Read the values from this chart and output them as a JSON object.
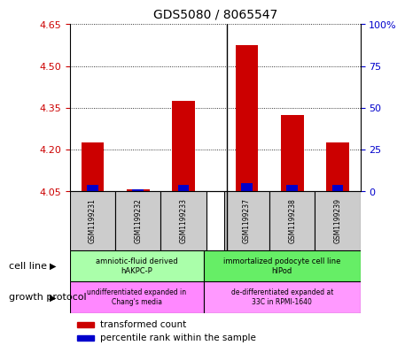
{
  "title": "GDS5080 / 8065547",
  "samples": [
    "GSM1199231",
    "GSM1199232",
    "GSM1199233",
    "GSM1199237",
    "GSM1199238",
    "GSM1199239"
  ],
  "transformed_counts": [
    4.225,
    4.057,
    4.375,
    4.575,
    4.325,
    4.225
  ],
  "percentile_ranks": [
    4,
    1,
    4,
    5,
    4,
    4
  ],
  "y_min": 4.05,
  "y_max": 4.65,
  "y_ticks": [
    4.05,
    4.2,
    4.35,
    4.5,
    4.65
  ],
  "y_ticks_labels": [
    "4.05",
    "4.20",
    "4.35",
    "4.50",
    "4.65"
  ],
  "right_y_ticks": [
    0,
    25,
    50,
    75,
    100
  ],
  "right_y_labels": [
    "0",
    "25",
    "50",
    "75",
    "100%"
  ],
  "bar_color_red": "#cc0000",
  "bar_color_blue": "#0000cc",
  "cell_line_groups": [
    {
      "label": "amniotic-fluid derived\nhAKPC-P",
      "start": 0,
      "end": 3,
      "color": "#aaffaa"
    },
    {
      "label": "immortalized podocyte cell line\nhIPod",
      "start": 3,
      "end": 6,
      "color": "#66ee66"
    }
  ],
  "growth_protocol_groups": [
    {
      "label": "undifferentiated expanded in\nChang's media",
      "start": 0,
      "end": 3,
      "color": "#ff88ff"
    },
    {
      "label": "de-differentiated expanded at\n33C in RPMI-1640",
      "start": 3,
      "end": 6,
      "color": "#ff99ff"
    }
  ],
  "cell_line_label": "cell line",
  "growth_protocol_label": "growth protocol",
  "legend_red": "transformed count",
  "legend_blue": "percentile rank within the sample",
  "left_axis_color": "#cc0000",
  "right_axis_color": "#0000cc",
  "sample_box_color": "#cccccc",
  "gap_between_groups": true
}
